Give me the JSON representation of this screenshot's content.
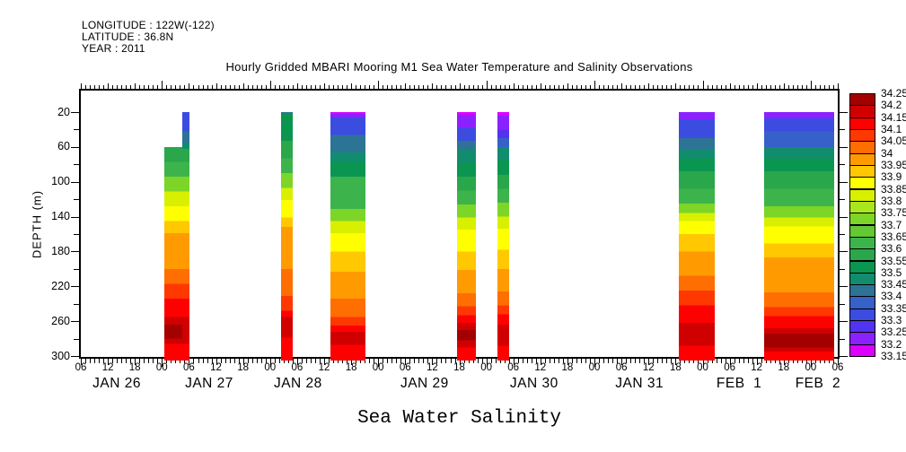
{
  "header": {
    "longitude_line": "LONGITUDE : 122W(-122)",
    "latitude_line": "LATITUDE : 36.8N",
    "year_line": "YEAR : 2011"
  },
  "title": "Hourly Gridded MBARI Mooring M1 Sea Water Temperature and Salinity Observations",
  "footer_title": "Sea Water Salinity",
  "chart_data": {
    "type": "heatmap",
    "title": "Hourly Gridded MBARI Mooring M1 Sea Water Temperature and Salinity Observations",
    "subtitle": "Sea Water Salinity",
    "missing_data_color": "#ffffff",
    "x_axis": {
      "start": "JAN 26 06:00",
      "end": "FEB 2 06:00",
      "minor_tick_interval_hours": 1,
      "labeled_tick_interval_hours": 6,
      "hour_tick_labels": [
        "06",
        "12",
        "18",
        "00",
        "06",
        "12",
        "18",
        "00",
        "06",
        "12",
        "18",
        "00",
        "06",
        "12",
        "18",
        "00",
        "06",
        "12",
        "18",
        "00",
        "06",
        "12",
        "18",
        "00",
        "06",
        "12",
        "18",
        "00",
        "06"
      ],
      "date_labels": [
        {
          "label": "JAN 26",
          "hour": 14
        },
        {
          "label": "JAN 27",
          "hour": 34.5
        },
        {
          "label": "JAN 28",
          "hour": 54.2
        },
        {
          "label": "JAN 29",
          "hour": 82.3
        },
        {
          "label": "JAN 30",
          "hour": 106.6
        },
        {
          "label": "JAN 31",
          "hour": 130
        },
        {
          "label": "FEB  1",
          "hour": 152.1
        },
        {
          "label": "FEB  2",
          "hour": 169.6
        }
      ]
    },
    "y_axis": {
      "label": "DEPTH (m)",
      "unit": "m",
      "range": [
        20,
        300
      ],
      "tick_labels": [
        20,
        60,
        100,
        140,
        180,
        220,
        260,
        300
      ],
      "minor_ticks": [
        40,
        80,
        120,
        160,
        200,
        240,
        280
      ]
    },
    "colorbar": {
      "min": 33.15,
      "max": 34.25,
      "interval": 0.05,
      "labels_top_to_bottom": [
        "34.25",
        "34.2",
        "34.15",
        "34.1",
        "34.05",
        "34",
        "33.95",
        "33.9",
        "33.85",
        "33.8",
        "33.75",
        "33.7",
        "33.65",
        "33.6",
        "33.55",
        "33.5",
        "33.45",
        "33.4",
        "33.35",
        "33.3",
        "33.25",
        "33.2",
        "33.15"
      ],
      "colors_bottom_to_top": [
        "#dc00ff",
        "#8c21ff",
        "#5233f0",
        "#3c4ce1",
        "#3661c8",
        "#2d7396",
        "#128c6e",
        "#0a9650",
        "#2aa64b",
        "#3cb44b",
        "#64c832",
        "#7dd528",
        "#aae61e",
        "#d8f000",
        "#ffff00",
        "#ffc800",
        "#ff9b00",
        "#ff6e00",
        "#ff3800",
        "#ff0000",
        "#d10000",
        "#a30000"
      ]
    },
    "bands": [
      {
        "name": "jan27-early-lower",
        "start_hour": 24.5,
        "end_hour": 28.5,
        "top_depth": 60,
        "segments": [
          [
            8,
            77
          ],
          [
            9,
            94
          ],
          [
            11,
            111
          ],
          [
            13,
            128
          ],
          [
            14,
            145
          ],
          [
            15,
            159
          ],
          [
            16,
            200
          ],
          [
            17,
            217
          ],
          [
            18,
            234
          ],
          [
            19,
            255
          ],
          [
            20,
            264
          ],
          [
            21,
            280
          ],
          [
            20,
            286
          ],
          [
            19,
            300
          ]
        ]
      },
      {
        "name": "jan27-early-upper-column",
        "start_hour": 28.5,
        "end_hour": 30.1,
        "top_depth": 20,
        "segments": [
          [
            3,
            42
          ],
          [
            5,
            55
          ],
          [
            6,
            62
          ],
          [
            8,
            77
          ],
          [
            9,
            94
          ],
          [
            11,
            111
          ],
          [
            13,
            128
          ],
          [
            14,
            145
          ],
          [
            15,
            159
          ],
          [
            16,
            200
          ],
          [
            17,
            217
          ],
          [
            18,
            234
          ],
          [
            19,
            255
          ],
          [
            20,
            286
          ],
          [
            19,
            300
          ]
        ]
      },
      {
        "name": "jan28-morning",
        "start_hour": 50.4,
        "end_hour": 53.0,
        "top_depth": 20,
        "segments": [
          [
            5,
            22
          ],
          [
            7,
            53
          ],
          [
            8,
            73
          ],
          [
            9,
            90
          ],
          [
            11,
            107
          ],
          [
            13,
            121
          ],
          [
            14,
            141
          ],
          [
            15,
            152
          ],
          [
            16,
            200
          ],
          [
            17,
            231
          ],
          [
            18,
            248
          ],
          [
            19,
            255
          ],
          [
            20,
            279
          ],
          [
            19,
            300
          ]
        ]
      },
      {
        "name": "jan28-evening",
        "start_hour": 61.4,
        "end_hour": 69.2,
        "top_depth": 20,
        "segments": [
          [
            0,
            22
          ],
          [
            1,
            26
          ],
          [
            3,
            46
          ],
          [
            5,
            66
          ],
          [
            6,
            77
          ],
          [
            7,
            94
          ],
          [
            9,
            131
          ],
          [
            11,
            145
          ],
          [
            13,
            159
          ],
          [
            14,
            180
          ],
          [
            15,
            203
          ],
          [
            16,
            234
          ],
          [
            17,
            255
          ],
          [
            18,
            265
          ],
          [
            19,
            272
          ],
          [
            20,
            287
          ],
          [
            19,
            300
          ]
        ]
      },
      {
        "name": "jan29-evening",
        "start_hour": 89.5,
        "end_hour": 93.7,
        "top_depth": 20,
        "segments": [
          [
            0,
            23
          ],
          [
            1,
            38
          ],
          [
            3,
            53
          ],
          [
            5,
            63
          ],
          [
            6,
            78
          ],
          [
            7,
            94
          ],
          [
            8,
            110
          ],
          [
            9,
            126
          ],
          [
            11,
            141
          ],
          [
            13,
            155
          ],
          [
            14,
            180
          ],
          [
            15,
            201
          ],
          [
            16,
            228
          ],
          [
            17,
            243
          ],
          [
            18,
            253
          ],
          [
            19,
            262
          ],
          [
            20,
            270
          ],
          [
            21,
            282
          ],
          [
            20,
            290
          ],
          [
            19,
            300
          ]
        ]
      },
      {
        "name": "jan30-morning",
        "start_hour": 98.5,
        "end_hour": 101.1,
        "top_depth": 20,
        "segments": [
          [
            0,
            24
          ],
          [
            1,
            40
          ],
          [
            2,
            50
          ],
          [
            4,
            60
          ],
          [
            6,
            75
          ],
          [
            7,
            92
          ],
          [
            8,
            108
          ],
          [
            9,
            124
          ],
          [
            11,
            140
          ],
          [
            13,
            154
          ],
          [
            14,
            178
          ],
          [
            15,
            200
          ],
          [
            16,
            226
          ],
          [
            17,
            242
          ],
          [
            18,
            252
          ],
          [
            19,
            264
          ],
          [
            20,
            288
          ],
          [
            19,
            300
          ]
        ]
      },
      {
        "name": "jan31-night",
        "start_hour": 138.7,
        "end_hour": 146.7,
        "top_depth": 20,
        "segments": [
          [
            1,
            28
          ],
          [
            3,
            50
          ],
          [
            5,
            62
          ],
          [
            6,
            73
          ],
          [
            7,
            88
          ],
          [
            8,
            108
          ],
          [
            9,
            125
          ],
          [
            11,
            136
          ],
          [
            13,
            145
          ],
          [
            14,
            160
          ],
          [
            15,
            180
          ],
          [
            16,
            208
          ],
          [
            17,
            225
          ],
          [
            18,
            242
          ],
          [
            19,
            262
          ],
          [
            20,
            288
          ],
          [
            19,
            300
          ]
        ]
      },
      {
        "name": "feb1-feb2",
        "start_hour": 157.7,
        "end_hour": 173.3,
        "top_depth": 20,
        "segments": [
          [
            1,
            27
          ],
          [
            3,
            42
          ],
          [
            4,
            60
          ],
          [
            6,
            73
          ],
          [
            7,
            88
          ],
          [
            8,
            108
          ],
          [
            9,
            128
          ],
          [
            11,
            141
          ],
          [
            13,
            151
          ],
          [
            14,
            171
          ],
          [
            15,
            187
          ],
          [
            16,
            227
          ],
          [
            17,
            244
          ],
          [
            18,
            254
          ],
          [
            19,
            268
          ],
          [
            20,
            274
          ],
          [
            21,
            290
          ],
          [
            20,
            295
          ],
          [
            19,
            300
          ]
        ]
      }
    ]
  }
}
